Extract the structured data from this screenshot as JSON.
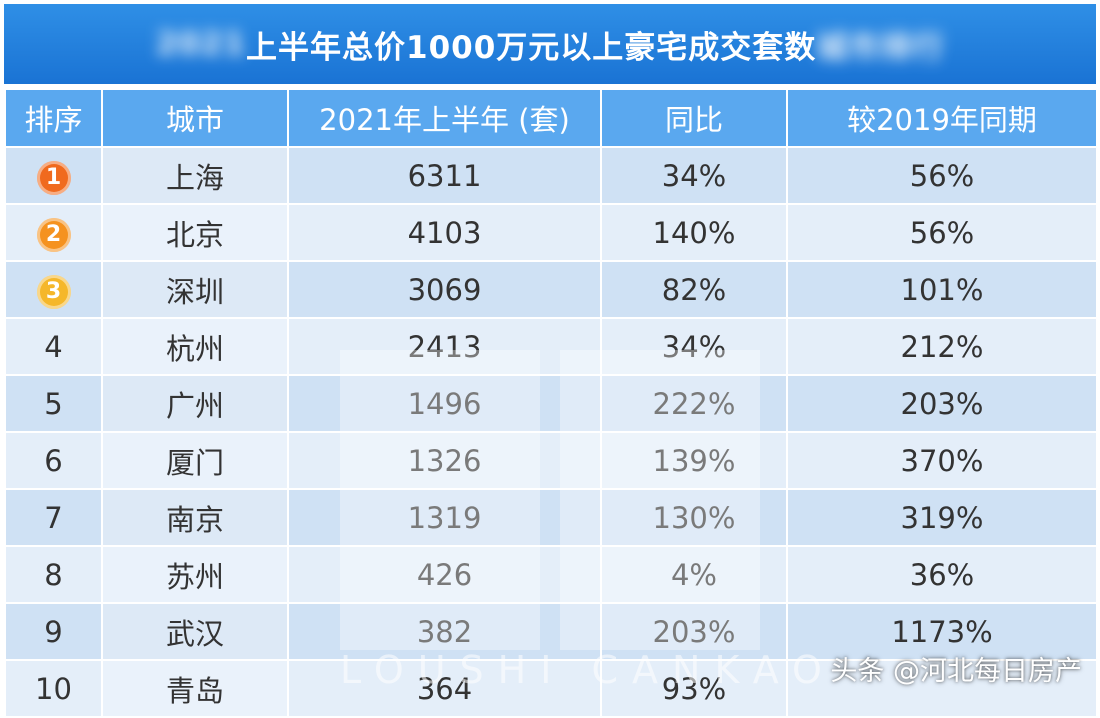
{
  "title": {
    "blurred_prefix": "2021",
    "visible": "上半年总价1000万元以上豪宅成交套数",
    "blurred_suffix": "城市排行"
  },
  "headers": [
    "排序",
    "城市",
    "2021年上半年 (套)",
    "同比",
    "较2019年同期"
  ],
  "rows": [
    {
      "rank": "1",
      "city": "上海",
      "units": "6311",
      "yoy": "34%",
      "vs2019": "56%"
    },
    {
      "rank": "2",
      "city": "北京",
      "units": "4103",
      "yoy": "140%",
      "vs2019": "56%"
    },
    {
      "rank": "3",
      "city": "深圳",
      "units": "3069",
      "yoy": "82%",
      "vs2019": "101%"
    },
    {
      "rank": "4",
      "city": "杭州",
      "units": "2413",
      "yoy": "34%",
      "vs2019": "212%"
    },
    {
      "rank": "5",
      "city": "广州",
      "units": "1496",
      "yoy": "222%",
      "vs2019": "203%"
    },
    {
      "rank": "6",
      "city": "厦门",
      "units": "1326",
      "yoy": "139%",
      "vs2019": "370%"
    },
    {
      "rank": "7",
      "city": "南京",
      "units": "1319",
      "yoy": "130%",
      "vs2019": "319%"
    },
    {
      "rank": "8",
      "city": "苏州",
      "units": "426",
      "yoy": "4%",
      "vs2019": "36%"
    },
    {
      "rank": "9",
      "city": "武汉",
      "units": "382",
      "yoy": "203%",
      "vs2019": "1173%"
    },
    {
      "rank": "10",
      "city": "青岛",
      "units": "364",
      "yoy": "93%",
      "vs2019": ""
    }
  ],
  "medal_colors": [
    "#f06a1e",
    "#f5921f",
    "#f5b72a"
  ],
  "watermark": "LOUSHI CANKAO",
  "source_tag": "头条 @河北每日房产",
  "colors": {
    "title_bg": "#1f7bdc",
    "header_bg": "#5aa8ef",
    "row_dark": "#cfe1f4",
    "row_light": "#e4eef9"
  }
}
